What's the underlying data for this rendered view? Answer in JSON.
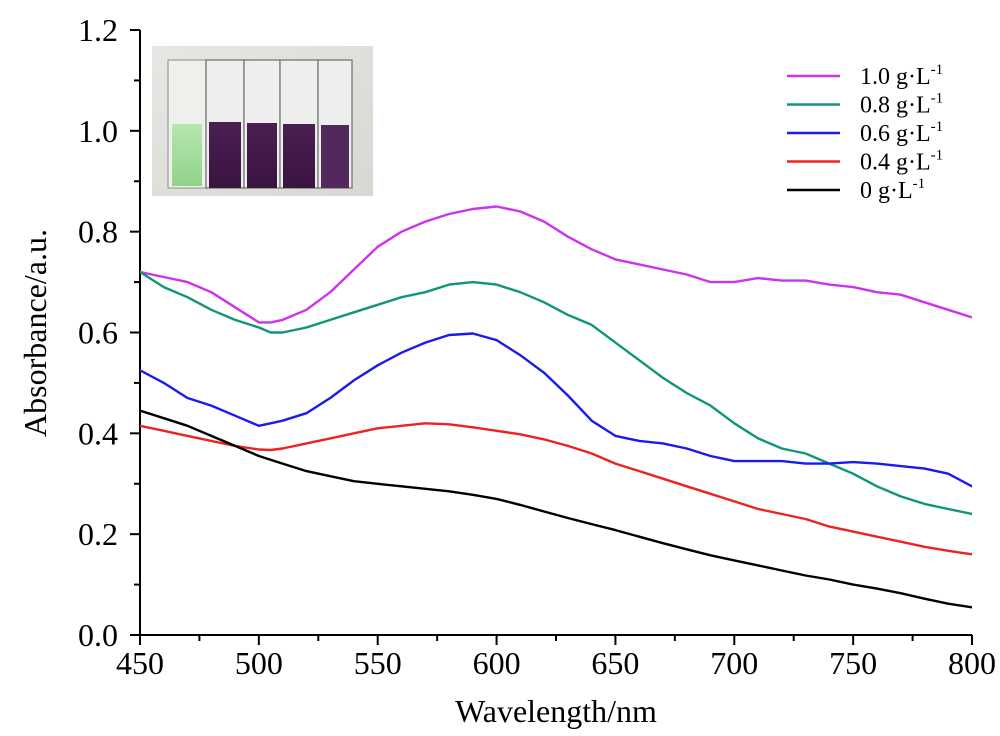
{
  "chart_data": {
    "type": "line",
    "xlabel": "Wavelength/nm",
    "ylabel": "Absorbance/a.u.",
    "xlim": [
      450,
      800
    ],
    "ylim": [
      0.0,
      1.2
    ],
    "x_ticks": [
      "450",
      "500",
      "550",
      "600",
      "650",
      "700",
      "750",
      "800"
    ],
    "y_ticks": [
      "0.0",
      "0.2",
      "0.4",
      "0.6",
      "0.8",
      "1.0",
      "1.2"
    ],
    "legend_position": "top-right",
    "grid": false,
    "inset": "photo of five cuvettes: first with light green solution, four with dark purple solution",
    "series": [
      {
        "name": "1.0 g·L",
        "name_superscript": "-1",
        "color": "#cc33ee",
        "x": [
          450,
          460,
          470,
          480,
          490,
          500,
          505,
          510,
          520,
          530,
          540,
          550,
          560,
          570,
          580,
          590,
          600,
          610,
          620,
          630,
          640,
          650,
          660,
          670,
          680,
          690,
          700,
          710,
          720,
          730,
          740,
          750,
          760,
          770,
          780,
          790,
          800
        ],
        "y": [
          0.72,
          0.71,
          0.7,
          0.68,
          0.65,
          0.62,
          0.62,
          0.625,
          0.645,
          0.68,
          0.725,
          0.77,
          0.8,
          0.82,
          0.835,
          0.845,
          0.85,
          0.84,
          0.82,
          0.79,
          0.765,
          0.745,
          0.735,
          0.725,
          0.715,
          0.7,
          0.7,
          0.708,
          0.703,
          0.703,
          0.695,
          0.69,
          0.68,
          0.675,
          0.66,
          0.645,
          0.63
        ]
      },
      {
        "name": "0.8 g·L",
        "name_superscript": "-1",
        "color": "#11957a",
        "x": [
          450,
          460,
          470,
          480,
          490,
          500,
          505,
          510,
          520,
          530,
          540,
          550,
          560,
          570,
          580,
          590,
          600,
          610,
          620,
          630,
          640,
          650,
          660,
          670,
          680,
          690,
          700,
          710,
          720,
          730,
          740,
          750,
          760,
          770,
          780,
          790,
          800
        ],
        "y": [
          0.72,
          0.69,
          0.67,
          0.645,
          0.625,
          0.61,
          0.6,
          0.6,
          0.61,
          0.625,
          0.64,
          0.655,
          0.67,
          0.68,
          0.695,
          0.7,
          0.695,
          0.68,
          0.66,
          0.635,
          0.615,
          0.58,
          0.545,
          0.51,
          0.48,
          0.455,
          0.42,
          0.39,
          0.37,
          0.36,
          0.34,
          0.32,
          0.295,
          0.275,
          0.26,
          0.25,
          0.24
        ]
      },
      {
        "name": "0.6 g·L",
        "name_superscript": "-1",
        "color": "#1a1aee",
        "x": [
          450,
          460,
          470,
          480,
          490,
          500,
          505,
          510,
          520,
          530,
          540,
          550,
          560,
          570,
          580,
          590,
          600,
          610,
          620,
          630,
          640,
          650,
          660,
          670,
          680,
          690,
          700,
          710,
          720,
          730,
          740,
          750,
          760,
          770,
          780,
          790,
          800
        ],
        "y": [
          0.525,
          0.5,
          0.47,
          0.455,
          0.435,
          0.415,
          0.42,
          0.425,
          0.44,
          0.47,
          0.505,
          0.535,
          0.56,
          0.58,
          0.595,
          0.598,
          0.585,
          0.555,
          0.52,
          0.475,
          0.425,
          0.395,
          0.385,
          0.38,
          0.37,
          0.355,
          0.345,
          0.345,
          0.345,
          0.34,
          0.34,
          0.343,
          0.34,
          0.335,
          0.33,
          0.32,
          0.295
        ]
      },
      {
        "name": "0.4 g·L",
        "name_superscript": "-1",
        "color": "#ee2222",
        "x": [
          450,
          460,
          470,
          480,
          490,
          500,
          505,
          510,
          520,
          530,
          540,
          550,
          560,
          570,
          580,
          590,
          600,
          610,
          620,
          630,
          640,
          650,
          660,
          670,
          680,
          690,
          700,
          710,
          720,
          730,
          740,
          750,
          760,
          770,
          780,
          790,
          800
        ],
        "y": [
          0.415,
          0.405,
          0.395,
          0.385,
          0.375,
          0.368,
          0.367,
          0.37,
          0.38,
          0.39,
          0.4,
          0.41,
          0.415,
          0.42,
          0.418,
          0.412,
          0.405,
          0.398,
          0.388,
          0.375,
          0.36,
          0.34,
          0.325,
          0.31,
          0.295,
          0.28,
          0.265,
          0.25,
          0.24,
          0.23,
          0.215,
          0.205,
          0.195,
          0.185,
          0.175,
          0.167,
          0.16
        ]
      },
      {
        "name": "0 g·L",
        "name_superscript": "-1",
        "color": "#000000",
        "x": [
          450,
          460,
          470,
          480,
          490,
          500,
          510,
          520,
          530,
          540,
          550,
          560,
          570,
          580,
          590,
          600,
          610,
          620,
          630,
          640,
          650,
          660,
          670,
          680,
          690,
          700,
          710,
          720,
          730,
          740,
          750,
          760,
          770,
          780,
          790,
          800
        ],
        "y": [
          0.445,
          0.43,
          0.415,
          0.395,
          0.375,
          0.355,
          0.34,
          0.325,
          0.315,
          0.305,
          0.3,
          0.295,
          0.29,
          0.285,
          0.278,
          0.27,
          0.258,
          0.245,
          0.232,
          0.22,
          0.208,
          0.195,
          0.182,
          0.17,
          0.158,
          0.148,
          0.138,
          0.128,
          0.118,
          0.11,
          0.1,
          0.092,
          0.083,
          0.072,
          0.062,
          0.055
        ]
      }
    ]
  }
}
